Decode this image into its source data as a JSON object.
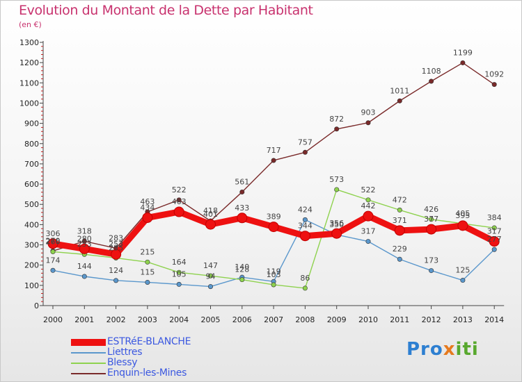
{
  "chart_title": "Evolution du Montant de la Dette par Habitant",
  "unit_label": "(en €)",
  "logo": {
    "text": "Proxiti",
    "parts": [
      "Pro",
      "x",
      "iti"
    ]
  },
  "chart_data": {
    "type": "line",
    "title": "Evolution du Montant de la Dette par Habitant",
    "ylabel": "(en €)",
    "xlabel": "",
    "x": [
      "2000",
      "2001",
      "2002",
      "2003",
      "2004",
      "2005",
      "2006",
      "2007",
      "2008",
      "2009",
      "2010",
      "2011",
      "2012",
      "2013",
      "2014"
    ],
    "ylim": [
      0,
      1300
    ],
    "yticks": [
      0,
      100,
      200,
      300,
      400,
      500,
      600,
      700,
      800,
      900,
      1000,
      1100,
      1200,
      1300
    ],
    "grid": false,
    "legend_position": "bottom-left",
    "series": [
      {
        "name": "ESTRéE-BLANCHE",
        "color": "#ee1111",
        "values": [
          306,
          280,
          253,
          434,
          463,
          401,
          433,
          389,
          344,
          356,
          442,
          371,
          377,
          395,
          317
        ]
      },
      {
        "name": "Liettres",
        "color": "#5a97cc",
        "values": [
          174,
          144,
          124,
          115,
          105,
          94,
          140,
          119,
          424,
          350,
          317,
          229,
          173,
          125,
          277
        ]
      },
      {
        "name": "Blessy",
        "color": "#8ed24e",
        "values": [
          266,
          253,
          235,
          215,
          164,
          147,
          128,
          103,
          86,
          573,
          522,
          472,
          426,
          405,
          384
        ]
      },
      {
        "name": "Enquin-les-Mines",
        "color": "#7a2a2a",
        "values": [
          270,
          318,
          283,
          463,
          522,
          418,
          561,
          717,
          757,
          872,
          903,
          1011,
          1108,
          1199,
          1092
        ]
      }
    ]
  }
}
